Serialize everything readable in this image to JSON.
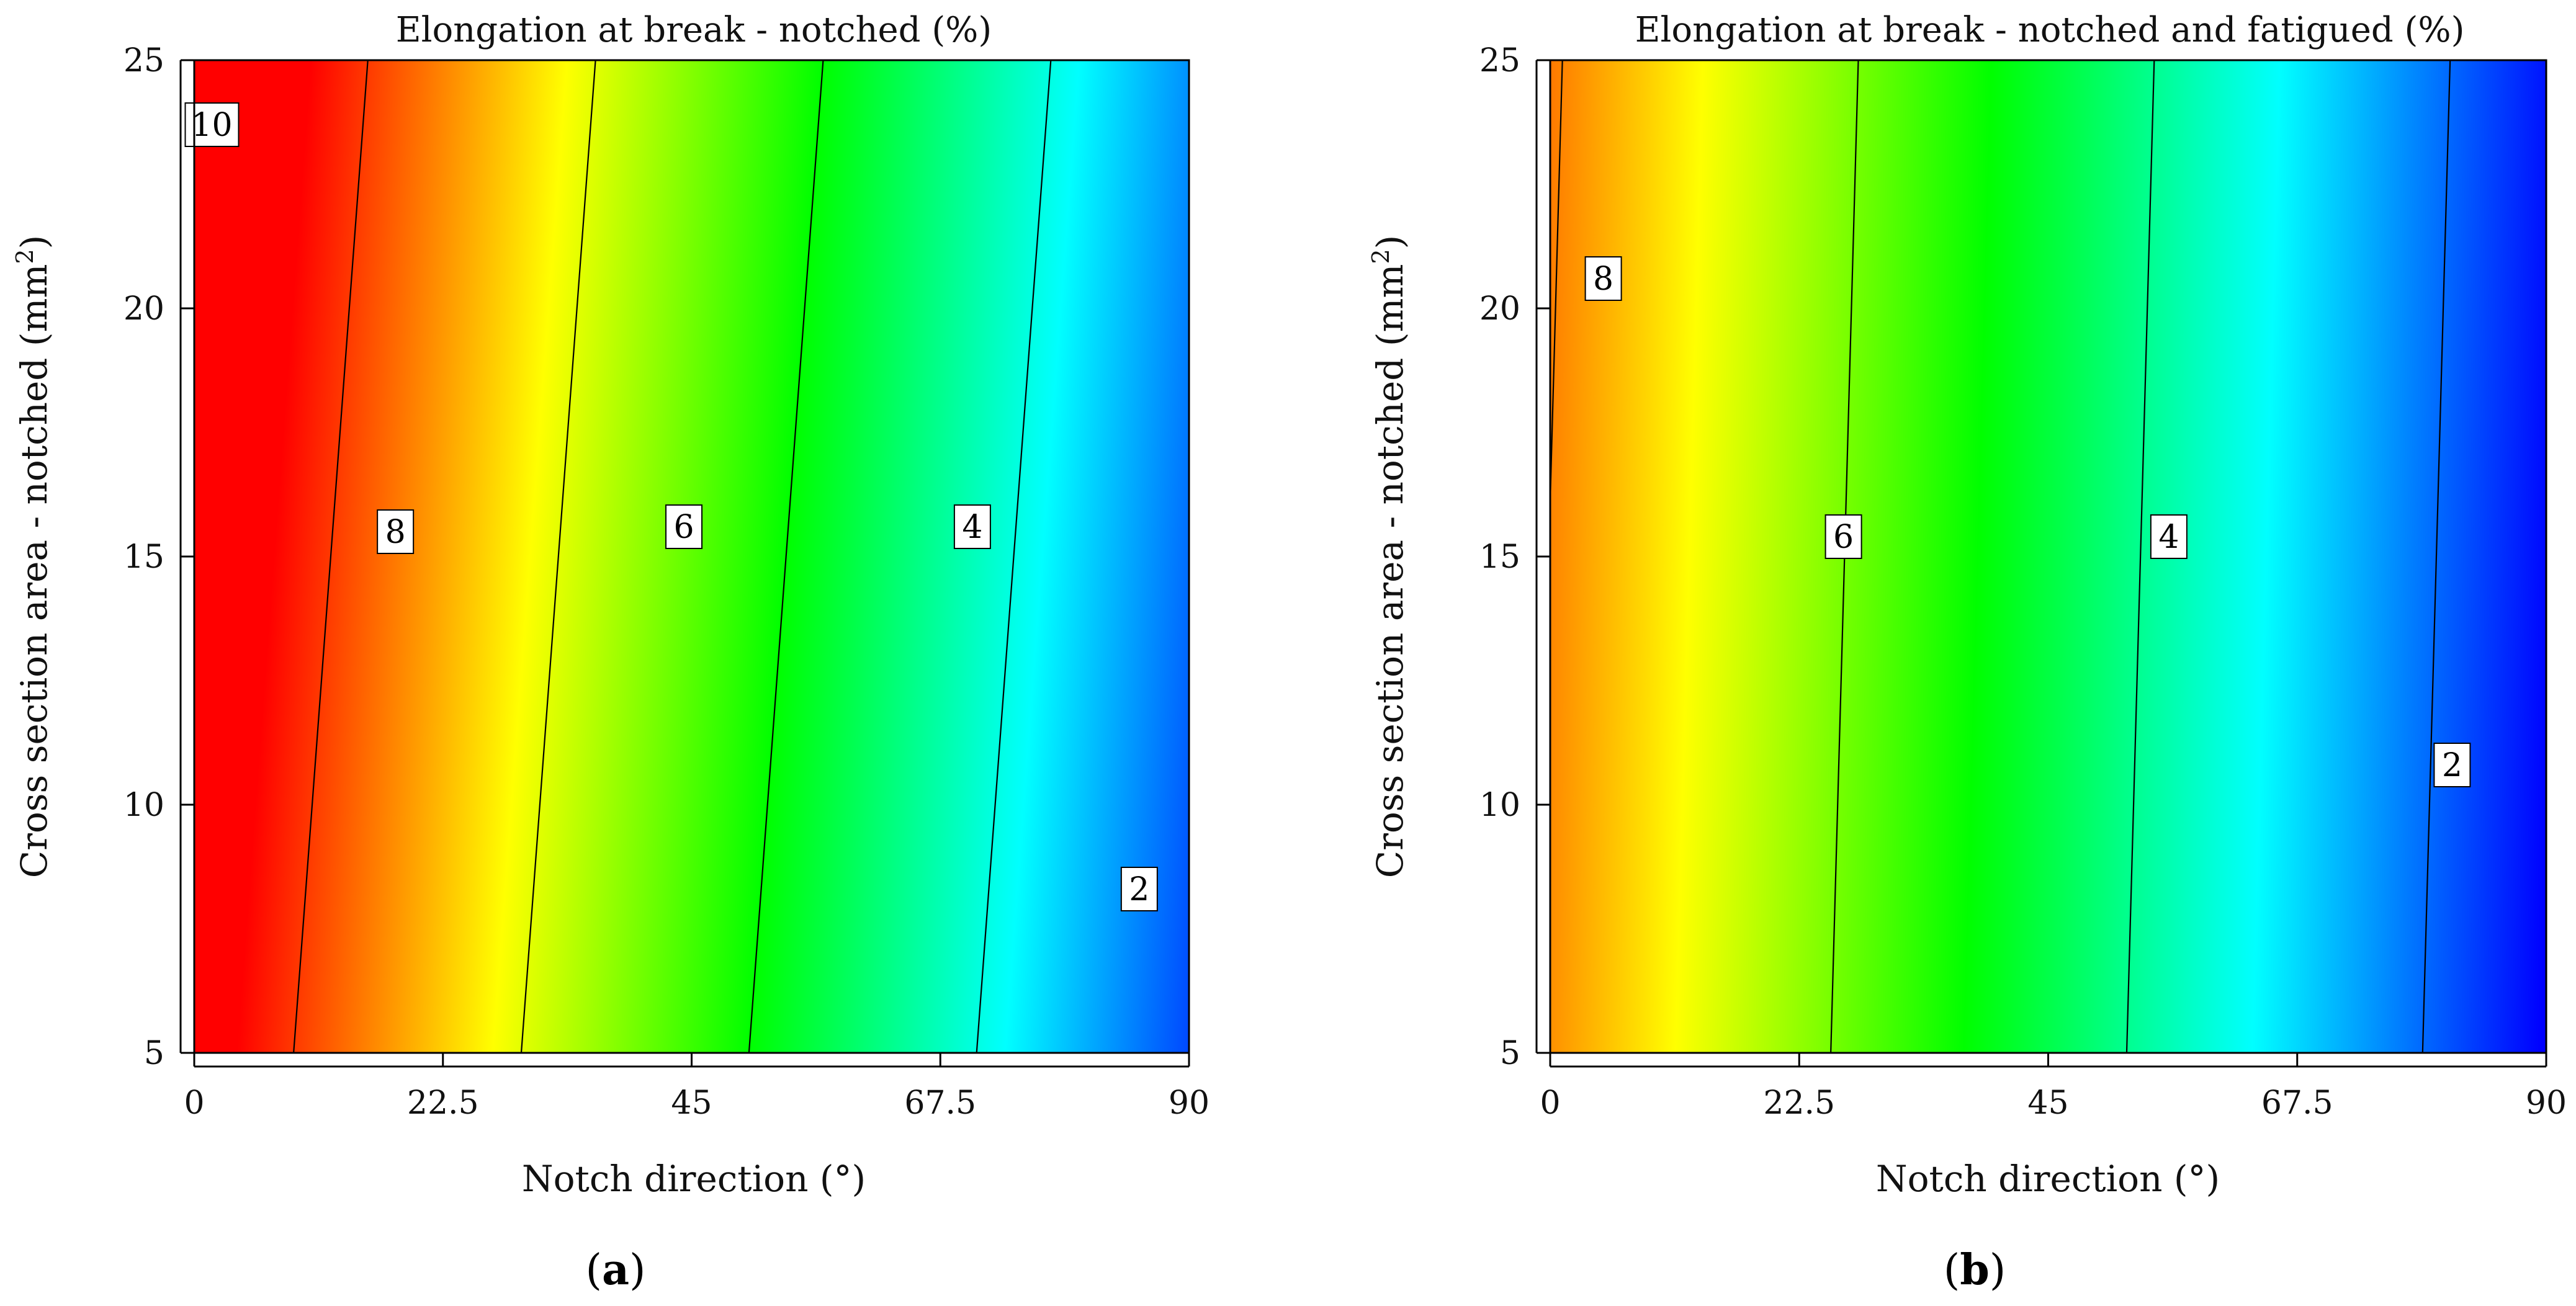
{
  "chart_data": [
    {
      "type": "heatmap",
      "panel": "a",
      "caption_open": "(",
      "caption_letter": "a",
      "caption_close": ")",
      "title": "Elongation at break -  notched (%)",
      "xlabel": "Notch direction (°)",
      "ylabel_text": "Cross section area  -  notched (mm",
      "ylabel_sup": "2",
      "ylabel_close": ")",
      "xlim": [
        0,
        90
      ],
      "ylim": [
        5,
        25
      ],
      "xticks": [
        0,
        22.5,
        45,
        67.5,
        90
      ],
      "xtick_labels": [
        "0",
        "22.5",
        "45",
        "67.5",
        "90"
      ],
      "yticks": [
        5,
        10,
        15,
        20,
        25
      ],
      "ytick_labels": [
        "5",
        "10",
        "15",
        "20",
        "25"
      ],
      "value_range": [
        1.5,
        10.5
      ],
      "colorscale": [
        "#0000ff",
        "#00ffff",
        "#00ff00",
        "#ffff00",
        "#ff0000"
      ],
      "surface_model": "value = intercept + angle_coef * x + area_coef * y",
      "intercept": 10.71,
      "angle_coef": -0.0971,
      "area_coef": 0.0326,
      "contours": [
        {
          "level": 10,
          "label": "10",
          "label_at": [
            1.6,
            23.7
          ]
        },
        {
          "level": 8,
          "label": "8",
          "label_at": [
            18.2,
            15.5
          ]
        },
        {
          "level": 6,
          "label": "6",
          "label_at": [
            44.3,
            15.6
          ]
        },
        {
          "level": 4,
          "label": "4",
          "label_at": [
            70.4,
            15.6
          ]
        },
        {
          "level": 2,
          "label": "2",
          "label_at": [
            85.5,
            8.3
          ]
        }
      ]
    },
    {
      "type": "heatmap",
      "panel": "b",
      "caption_open": "(",
      "caption_letter": "b",
      "caption_close": ")",
      "title": "Elongation at break -  notched and fatigued (%)",
      "xlabel": "Notch direction (°)",
      "ylabel_text": "Cross section area  -  notched (mm",
      "ylabel_sup": "2",
      "ylabel_close": ")",
      "xlim": [
        0,
        90
      ],
      "ylim": [
        5,
        25
      ],
      "xticks": [
        0,
        22.5,
        45,
        67.5,
        90
      ],
      "xtick_labels": [
        "0",
        "22.5",
        "45",
        "67.5",
        "90"
      ],
      "yticks": [
        5,
        10,
        15,
        20,
        25
      ],
      "ytick_labels": [
        "5",
        "10",
        "15",
        "20",
        "25"
      ],
      "value_range": [
        1.2,
        9.0
      ],
      "colorscale": [
        "#0000ff",
        "#00ffff",
        "#00ff00",
        "#ffff00",
        "#ff0000"
      ],
      "surface_model": "value = intercept + angle_coef * x + area_coef * y",
      "intercept": 7.85,
      "angle_coef": -0.0748,
      "area_coef": 0.0093,
      "contours": [
        {
          "level": 8,
          "label": "8",
          "label_at": [
            4.8,
            20.6
          ]
        },
        {
          "level": 6,
          "label": "6",
          "label_at": [
            26.5,
            15.4
          ]
        },
        {
          "level": 4,
          "label": "4",
          "label_at": [
            55.9,
            15.4
          ]
        },
        {
          "level": 2,
          "label": "2",
          "label_at": [
            81.5,
            10.8
          ]
        }
      ]
    }
  ]
}
